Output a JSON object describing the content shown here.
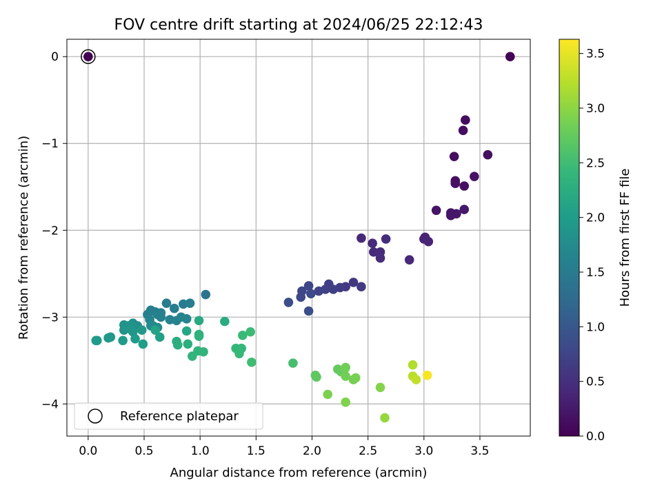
{
  "chart_data": {
    "type": "scatter",
    "title": "FOV centre drift starting at 2024/06/25 22:12:43",
    "xlabel": "Angular distance from reference (arcmin)",
    "ylabel": "Rotation from reference (arcmin)",
    "colorbar_label": "Hours from first FF file",
    "xlim": [
      -0.19,
      3.95
    ],
    "ylim": [
      -4.37,
      0.2
    ],
    "x_ticks": [
      0.0,
      0.5,
      1.0,
      1.5,
      2.0,
      2.5,
      3.0,
      3.5
    ],
    "x_tick_labels": [
      "0.0",
      "0.5",
      "1.0",
      "1.5",
      "2.0",
      "2.5",
      "3.0",
      "3.5"
    ],
    "y_ticks": [
      0,
      -1,
      -2,
      -3,
      -4
    ],
    "y_tick_labels": [
      "0",
      "−1",
      "−2",
      "−3",
      "−4"
    ],
    "colorbar_range": [
      0.0,
      3.63
    ],
    "colorbar_ticks": [
      0.0,
      0.5,
      1.0,
      1.5,
      2.0,
      2.5,
      3.0,
      3.5
    ],
    "colorbar_tick_labels": [
      "0.0",
      "0.5",
      "1.0",
      "1.5",
      "2.0",
      "2.5",
      "3.0",
      "3.5"
    ],
    "colormap": "viridis",
    "grid": true,
    "legend": {
      "placement": "lower-left",
      "label": "Reference platepar"
    },
    "reference_point": {
      "x": 0.0,
      "y": 0.0
    },
    "points": [
      [
        0.0,
        0.0,
        0.0
      ],
      [
        3.77,
        0.0,
        0.02
      ],
      [
        3.37,
        -0.73,
        0.12
      ],
      [
        3.35,
        -0.85,
        0.13
      ],
      [
        3.27,
        -1.15,
        0.14
      ],
      [
        3.57,
        -1.13,
        0.14
      ],
      [
        3.28,
        -1.43,
        0.16
      ],
      [
        3.28,
        -1.46,
        0.17
      ],
      [
        3.36,
        -1.49,
        0.17
      ],
      [
        3.45,
        -1.38,
        0.18
      ],
      [
        3.11,
        -1.77,
        0.2
      ],
      [
        3.24,
        -1.8,
        0.21
      ],
      [
        3.24,
        -1.83,
        0.22
      ],
      [
        3.29,
        -1.81,
        0.23
      ],
      [
        3.36,
        -1.76,
        0.24
      ],
      [
        3.0,
        -2.1,
        0.35
      ],
      [
        3.01,
        -2.08,
        0.36
      ],
      [
        3.04,
        -2.13,
        0.37
      ],
      [
        2.87,
        -2.34,
        0.4
      ],
      [
        2.44,
        -2.09,
        0.42
      ],
      [
        2.54,
        -2.15,
        0.43
      ],
      [
        2.55,
        -2.25,
        0.44
      ],
      [
        2.61,
        -2.25,
        0.45
      ],
      [
        2.61,
        -2.32,
        0.46
      ],
      [
        2.66,
        -2.1,
        0.47
      ],
      [
        2.37,
        -2.6,
        0.6
      ],
      [
        2.44,
        -2.65,
        0.62
      ],
      [
        2.3,
        -2.65,
        0.64
      ],
      [
        2.25,
        -2.66,
        0.66
      ],
      [
        2.19,
        -2.68,
        0.68
      ],
      [
        2.15,
        -2.62,
        0.7
      ],
      [
        2.12,
        -2.68,
        0.72
      ],
      [
        2.06,
        -2.7,
        0.74
      ],
      [
        1.97,
        -2.64,
        0.76
      ],
      [
        1.91,
        -2.7,
        0.78
      ],
      [
        1.9,
        -2.77,
        0.8
      ],
      [
        1.99,
        -2.73,
        0.82
      ],
      [
        1.79,
        -2.83,
        0.85
      ],
      [
        1.97,
        -2.93,
        0.87
      ],
      [
        1.05,
        -2.74,
        1.4
      ],
      [
        0.7,
        -2.84,
        1.5
      ],
      [
        0.85,
        -2.85,
        1.52
      ],
      [
        0.91,
        -2.84,
        1.53
      ],
      [
        0.77,
        -2.9,
        1.54
      ],
      [
        0.6,
        -2.94,
        1.55
      ],
      [
        0.65,
        -2.95,
        1.56
      ],
      [
        0.56,
        -2.92,
        1.57
      ],
      [
        0.53,
        -2.97,
        1.58
      ],
      [
        0.62,
        -2.97,
        1.59
      ],
      [
        0.65,
        -3.0,
        1.6
      ],
      [
        0.73,
        -3.03,
        1.62
      ],
      [
        0.79,
        -3.04,
        1.63
      ],
      [
        0.83,
        -3.0,
        1.64
      ],
      [
        0.88,
        -3.02,
        1.65
      ],
      [
        0.55,
        -3.03,
        1.66
      ],
      [
        0.58,
        -3.1,
        1.7
      ],
      [
        0.62,
        -3.12,
        1.72
      ],
      [
        0.56,
        -3.1,
        1.75
      ],
      [
        0.44,
        -3.1,
        1.8
      ],
      [
        0.4,
        -3.07,
        1.82
      ],
      [
        0.36,
        -3.1,
        1.84
      ],
      [
        0.32,
        -3.09,
        1.86
      ],
      [
        0.32,
        -3.15,
        1.88
      ],
      [
        0.38,
        -3.14,
        1.9
      ],
      [
        0.4,
        -3.17,
        1.92
      ],
      [
        0.48,
        -3.15,
        1.93
      ],
      [
        0.2,
        -3.23,
        1.94
      ],
      [
        0.18,
        -3.24,
        1.95
      ],
      [
        0.08,
        -3.27,
        1.96
      ],
      [
        0.07,
        -3.27,
        1.97
      ],
      [
        0.31,
        -3.27,
        1.98
      ],
      [
        0.42,
        -3.25,
        2.0
      ],
      [
        0.49,
        -3.31,
        2.02
      ],
      [
        0.64,
        -3.23,
        2.05
      ],
      [
        0.6,
        -3.15,
        2.1
      ],
      [
        0.88,
        -3.16,
        2.15
      ],
      [
        0.99,
        -3.04,
        2.2
      ],
      [
        1.22,
        -3.05,
        2.22
      ],
      [
        0.79,
        -3.28,
        2.25
      ],
      [
        0.8,
        -3.32,
        2.27
      ],
      [
        0.89,
        -3.31,
        2.28
      ],
      [
        0.99,
        -3.2,
        2.3
      ],
      [
        0.99,
        -3.22,
        2.32
      ],
      [
        0.98,
        -3.39,
        2.35
      ],
      [
        1.03,
        -3.4,
        2.36
      ],
      [
        0.93,
        -3.45,
        2.37
      ],
      [
        1.32,
        -3.36,
        2.4
      ],
      [
        1.37,
        -3.36,
        2.42
      ],
      [
        1.35,
        -3.42,
        2.43
      ],
      [
        1.38,
        -3.21,
        2.45
      ],
      [
        1.45,
        -3.17,
        2.47
      ],
      [
        1.46,
        -3.52,
        2.5
      ],
      [
        1.83,
        -3.53,
        2.55
      ],
      [
        2.03,
        -3.67,
        2.7
      ],
      [
        2.04,
        -3.69,
        2.72
      ],
      [
        2.23,
        -3.6,
        2.75
      ],
      [
        2.26,
        -3.63,
        2.77
      ],
      [
        2.29,
        -3.6,
        2.8
      ],
      [
        2.3,
        -3.58,
        2.82
      ],
      [
        2.3,
        -3.68,
        2.84
      ],
      [
        2.37,
        -3.72,
        2.86
      ],
      [
        2.39,
        -3.7,
        2.88
      ],
      [
        2.14,
        -3.89,
        2.9
      ],
      [
        2.3,
        -3.98,
        2.92
      ],
      [
        2.61,
        -3.81,
        2.95
      ],
      [
        2.65,
        -4.16,
        3.05
      ],
      [
        2.9,
        -3.55,
        3.2
      ],
      [
        2.9,
        -3.68,
        3.25
      ],
      [
        2.93,
        -3.72,
        3.3
      ],
      [
        3.03,
        -3.67,
        3.6
      ]
    ]
  }
}
